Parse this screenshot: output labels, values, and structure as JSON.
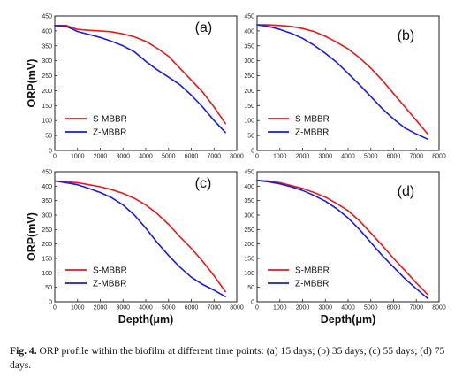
{
  "chart_data": [
    {
      "type": "line",
      "panel_label": "(a)",
      "xlabel": "",
      "ylabel": "ORP(mV)",
      "xlim": [
        0,
        8000
      ],
      "ylim": [
        0,
        450
      ],
      "xticks": [
        0,
        1000,
        2000,
        3000,
        4000,
        5000,
        6000,
        7000,
        8000
      ],
      "yticks": [
        0,
        50,
        100,
        150,
        200,
        250,
        300,
        350,
        400,
        450
      ],
      "legend_position": "bottom-left",
      "series": [
        {
          "name": "S-MBBR",
          "color": "#e41a1c",
          "x": [
            0,
            500,
            800,
            1000,
            1500,
            2000,
            2500,
            3000,
            3500,
            4000,
            4500,
            5000,
            5500,
            6000,
            6500,
            7000,
            7500
          ],
          "y": [
            418,
            418,
            410,
            405,
            402,
            400,
            397,
            390,
            380,
            365,
            342,
            315,
            275,
            235,
            195,
            145,
            90
          ]
        },
        {
          "name": "Z-MBBR",
          "color": "#1a1ae6",
          "x": [
            0,
            500,
            800,
            1000,
            1500,
            2000,
            2500,
            3000,
            3500,
            4000,
            4500,
            5000,
            5500,
            6000,
            6500,
            7000,
            7500
          ],
          "y": [
            418,
            415,
            405,
            398,
            388,
            378,
            365,
            350,
            330,
            298,
            270,
            245,
            220,
            185,
            145,
            100,
            60
          ]
        }
      ]
    },
    {
      "type": "line",
      "panel_label": "(b)",
      "xlabel": "",
      "ylabel": "",
      "xlim": [
        0,
        8000
      ],
      "ylim": [
        0,
        450
      ],
      "xticks": [
        0,
        1000,
        2000,
        3000,
        4000,
        5000,
        6000,
        7000,
        8000
      ],
      "yticks": [
        0,
        50,
        100,
        150,
        200,
        250,
        300,
        350,
        400,
        450
      ],
      "legend_position": "bottom-left",
      "series": [
        {
          "name": "S-MBBR",
          "color": "#e41a1c",
          "x": [
            0,
            500,
            1000,
            1500,
            2000,
            2500,
            3000,
            3500,
            4000,
            4500,
            5000,
            5500,
            6000,
            6500,
            7000,
            7500
          ],
          "y": [
            420,
            420,
            418,
            415,
            408,
            398,
            382,
            362,
            340,
            310,
            275,
            235,
            190,
            145,
            100,
            55
          ]
        },
        {
          "name": "Z-MBBR",
          "color": "#1a1ae6",
          "x": [
            0,
            500,
            1000,
            1500,
            2000,
            2500,
            3000,
            3500,
            4000,
            4500,
            5000,
            5500,
            6000,
            6500,
            7000,
            7500
          ],
          "y": [
            420,
            415,
            405,
            392,
            375,
            352,
            325,
            295,
            258,
            220,
            180,
            140,
            105,
            75,
            55,
            38
          ]
        }
      ]
    },
    {
      "type": "line",
      "panel_label": "(c)",
      "xlabel": "Depth(μm)",
      "ylabel": "ORP(mV)",
      "xlim": [
        0,
        8000
      ],
      "ylim": [
        0,
        450
      ],
      "xticks": [
        0,
        1000,
        2000,
        3000,
        4000,
        5000,
        6000,
        7000,
        8000
      ],
      "yticks": [
        0,
        50,
        100,
        150,
        200,
        250,
        300,
        350,
        400,
        450
      ],
      "legend_position": "bottom-left",
      "series": [
        {
          "name": "S-MBBR",
          "color": "#e41a1c",
          "x": [
            0,
            500,
            1000,
            1500,
            2000,
            2500,
            3000,
            3500,
            4000,
            4500,
            5000,
            5500,
            6000,
            6500,
            7000,
            7500
          ],
          "y": [
            418,
            415,
            412,
            405,
            398,
            388,
            375,
            358,
            335,
            305,
            268,
            225,
            185,
            140,
            90,
            35
          ]
        },
        {
          "name": "Z-MBBR",
          "color": "#1a1ae6",
          "x": [
            0,
            500,
            1000,
            1500,
            2000,
            2500,
            3000,
            3500,
            4000,
            4500,
            5000,
            5500,
            6000,
            6500,
            7000,
            7500
          ],
          "y": [
            418,
            412,
            405,
            392,
            378,
            360,
            335,
            300,
            255,
            205,
            160,
            120,
            85,
            60,
            40,
            18
          ]
        }
      ]
    },
    {
      "type": "line",
      "panel_label": "(d)",
      "xlabel": "Depth(μm)",
      "ylabel": "",
      "xlim": [
        0,
        8000
      ],
      "ylim": [
        0,
        450
      ],
      "xticks": [
        0,
        1000,
        2000,
        3000,
        4000,
        5000,
        6000,
        7000,
        8000
      ],
      "yticks": [
        0,
        50,
        100,
        150,
        200,
        250,
        300,
        350,
        400,
        450
      ],
      "legend_position": "bottom-left",
      "series": [
        {
          "name": "S-MBBR",
          "color": "#e41a1c",
          "x": [
            0,
            500,
            1000,
            1500,
            2000,
            2500,
            3000,
            3500,
            4000,
            4500,
            5000,
            5500,
            6000,
            6500,
            7000,
            7500
          ],
          "y": [
            420,
            418,
            412,
            402,
            392,
            378,
            362,
            340,
            315,
            280,
            238,
            195,
            150,
            108,
            65,
            25
          ]
        },
        {
          "name": "Z-MBBR",
          "color": "#1a1ae6",
          "x": [
            0,
            500,
            1000,
            1500,
            2000,
            2500,
            3000,
            3500,
            4000,
            4500,
            5000,
            5500,
            6000,
            6500,
            7000,
            7500
          ],
          "y": [
            420,
            415,
            408,
            398,
            385,
            368,
            348,
            322,
            290,
            250,
            205,
            160,
            120,
            80,
            45,
            12
          ]
        }
      ]
    }
  ],
  "caption": {
    "label": "Fig. 4.",
    "text": " ORP profile within the biofilm at different time points: (a) 15 days; (b) 35 days; (c) 55 days; (d) 75 days."
  }
}
